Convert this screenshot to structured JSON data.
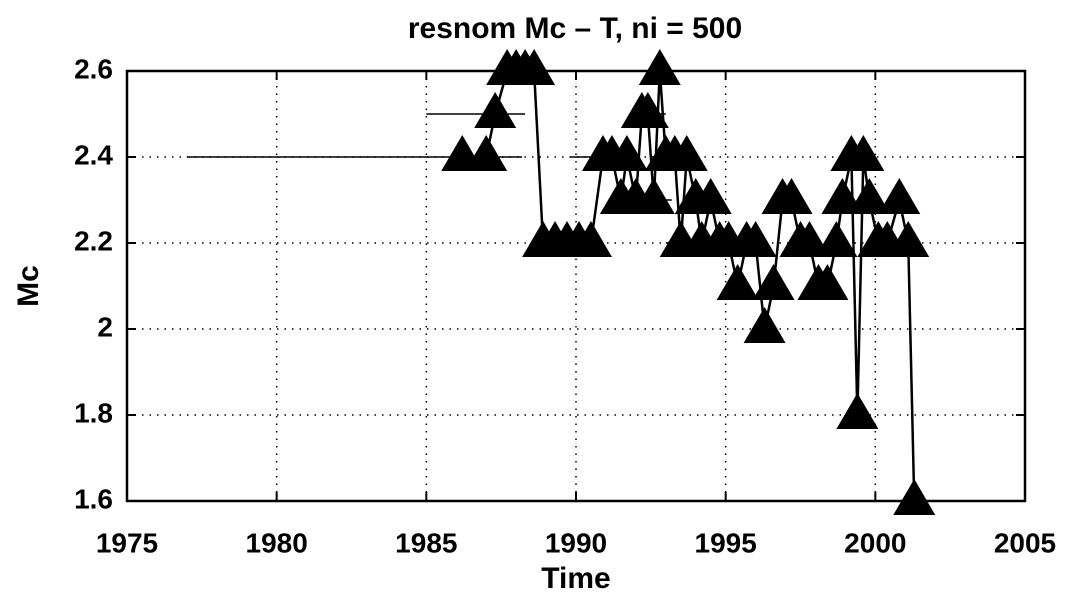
{
  "chart_data": {
    "type": "line",
    "title": "resnom Mc – T, ni = 500",
    "xlabel": "Time",
    "ylabel": "Mc",
    "x": [
      1986.2,
      1987.0,
      1987.3,
      1987.7,
      1988.0,
      1988.3,
      1988.6,
      1988.9,
      1989.3,
      1989.7,
      1990.1,
      1990.5,
      1990.9,
      1991.2,
      1991.5,
      1991.7,
      1992.0,
      1992.2,
      1992.4,
      1992.6,
      1992.8,
      1993.0,
      1993.3,
      1993.5,
      1993.7,
      1994.0,
      1994.2,
      1994.5,
      1994.8,
      1995.1,
      1995.4,
      1995.7,
      1996.0,
      1996.3,
      1996.6,
      1996.9,
      1997.2,
      1997.5,
      1997.8,
      1998.1,
      1998.4,
      1998.7,
      1998.9,
      1999.2,
      1999.4,
      1999.6,
      1999.8,
      2000.1,
      2000.4,
      2000.8,
      2001.1,
      2001.3
    ],
    "values": [
      2.4,
      2.4,
      2.5,
      2.6,
      2.6,
      2.6,
      2.6,
      2.2,
      2.2,
      2.2,
      2.2,
      2.2,
      2.4,
      2.4,
      2.3,
      2.4,
      2.3,
      2.5,
      2.5,
      2.3,
      2.6,
      2.4,
      2.4,
      2.2,
      2.4,
      2.3,
      2.2,
      2.3,
      2.2,
      2.2,
      2.1,
      2.2,
      2.2,
      2.0,
      2.1,
      2.3,
      2.3,
      2.2,
      2.2,
      2.1,
      2.1,
      2.2,
      2.3,
      2.4,
      1.8,
      2.4,
      2.3,
      2.2,
      2.2,
      2.3,
      2.2,
      1.6
    ],
    "color": "#000000",
    "error_bars": [
      {
        "x": [
          1977.0,
          1986.8
        ],
        "y": 2.4
      },
      {
        "x": [
          1985.0,
          1988.3
        ],
        "y": 2.5
      },
      {
        "x": [
          1986.0,
          1988.2
        ],
        "y": 2.4
      },
      {
        "x": [
          1989.6,
          1990.6
        ],
        "y": 2.2
      },
      {
        "x": [
          1989.8,
          1991.5
        ],
        "y": 2.4
      },
      {
        "x": [
          1991.6,
          1992.6
        ],
        "y": 2.3
      },
      {
        "x": [
          1991.9,
          1993.0
        ],
        "y": 2.5
      },
      {
        "x": [
          1992.4,
          1993.2
        ],
        "y": 2.3
      },
      {
        "x": [
          1993.0,
          1994.3
        ],
        "y": 2.2
      }
    ],
    "xlim": [
      1975,
      2005
    ],
    "xticks": [
      1975,
      1980,
      1985,
      1990,
      1995,
      2000,
      2005
    ],
    "ylim": [
      1.6,
      2.6
    ],
    "yticks": [
      1.6,
      1.8,
      2,
      2.2,
      2.4,
      2.6
    ],
    "grid": true
  }
}
